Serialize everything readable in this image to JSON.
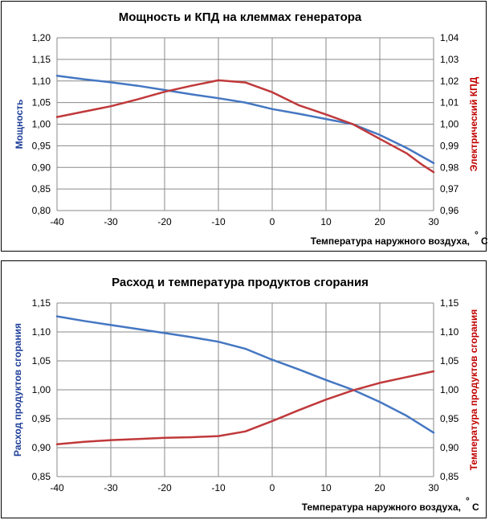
{
  "chart_data": [
    {
      "type": "line",
      "title": "Мощность и КПД на клеммах генератора",
      "xlabel": "Температура наружного воздуха,",
      "xlabel_unit": "С",
      "xlabel_degree": "°",
      "ylabel_left": "Мощность",
      "ylabel_right": "Электрический КПД",
      "xlim": [
        -40,
        30
      ],
      "x_ticks": [
        "-40",
        "-30",
        "-20",
        "-10",
        "0",
        "10",
        "20",
        "30"
      ],
      "ylim_left": [
        0.8,
        1.2
      ],
      "y_ticks_left": [
        "0,80",
        "0,85",
        "0,90",
        "0,95",
        "1,00",
        "1,05",
        "1,10",
        "1,15",
        "1,20"
      ],
      "ylim_right": [
        0.96,
        1.04
      ],
      "y_ticks_right": [
        "0,96",
        "0,97",
        "0,98",
        "0,99",
        "1,00",
        "1,01",
        "1,02",
        "1,03",
        "1,04"
      ],
      "series": [
        {
          "name": "Мощность",
          "axis": "left",
          "color": "#4577c2",
          "x": [
            -40,
            -35,
            -30,
            -25,
            -20,
            -15,
            -10,
            -5,
            0,
            5,
            10,
            15,
            20,
            25,
            30
          ],
          "values": [
            1.112,
            1.104,
            1.097,
            1.089,
            1.079,
            1.069,
            1.06,
            1.05,
            1.035,
            1.024,
            1.012,
            1.0,
            0.975,
            0.945,
            0.91
          ]
        },
        {
          "name": "Электрический КПД",
          "axis": "right",
          "color": "#c0393b",
          "x": [
            -40,
            -35,
            -30,
            -25,
            -20,
            -15,
            -10,
            -5,
            0,
            5,
            10,
            15,
            20,
            25,
            28,
            30
          ],
          "values": [
            1.0033,
            1.0058,
            1.0083,
            1.0115,
            1.015,
            1.0178,
            1.0203,
            1.0193,
            1.0148,
            1.0087,
            1.0045,
            1.0,
            0.9932,
            0.9865,
            0.981,
            0.9778
          ]
        }
      ]
    },
    {
      "type": "line",
      "title": "Расход и температура продуктов сгорания",
      "xlabel": "Температура наружного воздуха,",
      "xlabel_unit": "С",
      "xlabel_degree": "°",
      "ylabel_left": "Расход продуктов сгорания",
      "ylabel_right": "Температура продуктов сгорания",
      "xlim": [
        -40,
        30
      ],
      "x_ticks": [
        "-40",
        "-30",
        "-20",
        "-10",
        "0",
        "10",
        "20",
        "30"
      ],
      "ylim_left": [
        0.85,
        1.15
      ],
      "y_ticks_left": [
        "0,85",
        "0,90",
        "0,95",
        "1,00",
        "1,05",
        "1,10",
        "1,15"
      ],
      "ylim_right": [
        0.85,
        1.15
      ],
      "y_ticks_right": [
        "0,85",
        "0,90",
        "0,95",
        "1,00",
        "1,05",
        "1,10",
        "1,15"
      ],
      "series": [
        {
          "name": "Расход продуктов сгорания",
          "axis": "left",
          "color": "#4577c2",
          "x": [
            -40,
            -35,
            -30,
            -25,
            -20,
            -15,
            -10,
            -5,
            0,
            5,
            10,
            15,
            20,
            25,
            30
          ],
          "values": [
            1.127,
            1.119,
            1.112,
            1.105,
            1.098,
            1.091,
            1.083,
            1.071,
            1.052,
            1.035,
            1.017,
            1.0,
            0.979,
            0.955,
            0.926
          ]
        },
        {
          "name": "Температура продуктов сгорания",
          "axis": "right",
          "color": "#c0393b",
          "x": [
            -40,
            -35,
            -30,
            -25,
            -20,
            -15,
            -10,
            -5,
            0,
            5,
            10,
            15,
            20,
            25,
            30
          ],
          "values": [
            0.906,
            0.91,
            0.913,
            0.915,
            0.917,
            0.918,
            0.92,
            0.928,
            0.946,
            0.965,
            0.983,
            0.999,
            1.012,
            1.022,
            1.032
          ]
        }
      ]
    }
  ]
}
